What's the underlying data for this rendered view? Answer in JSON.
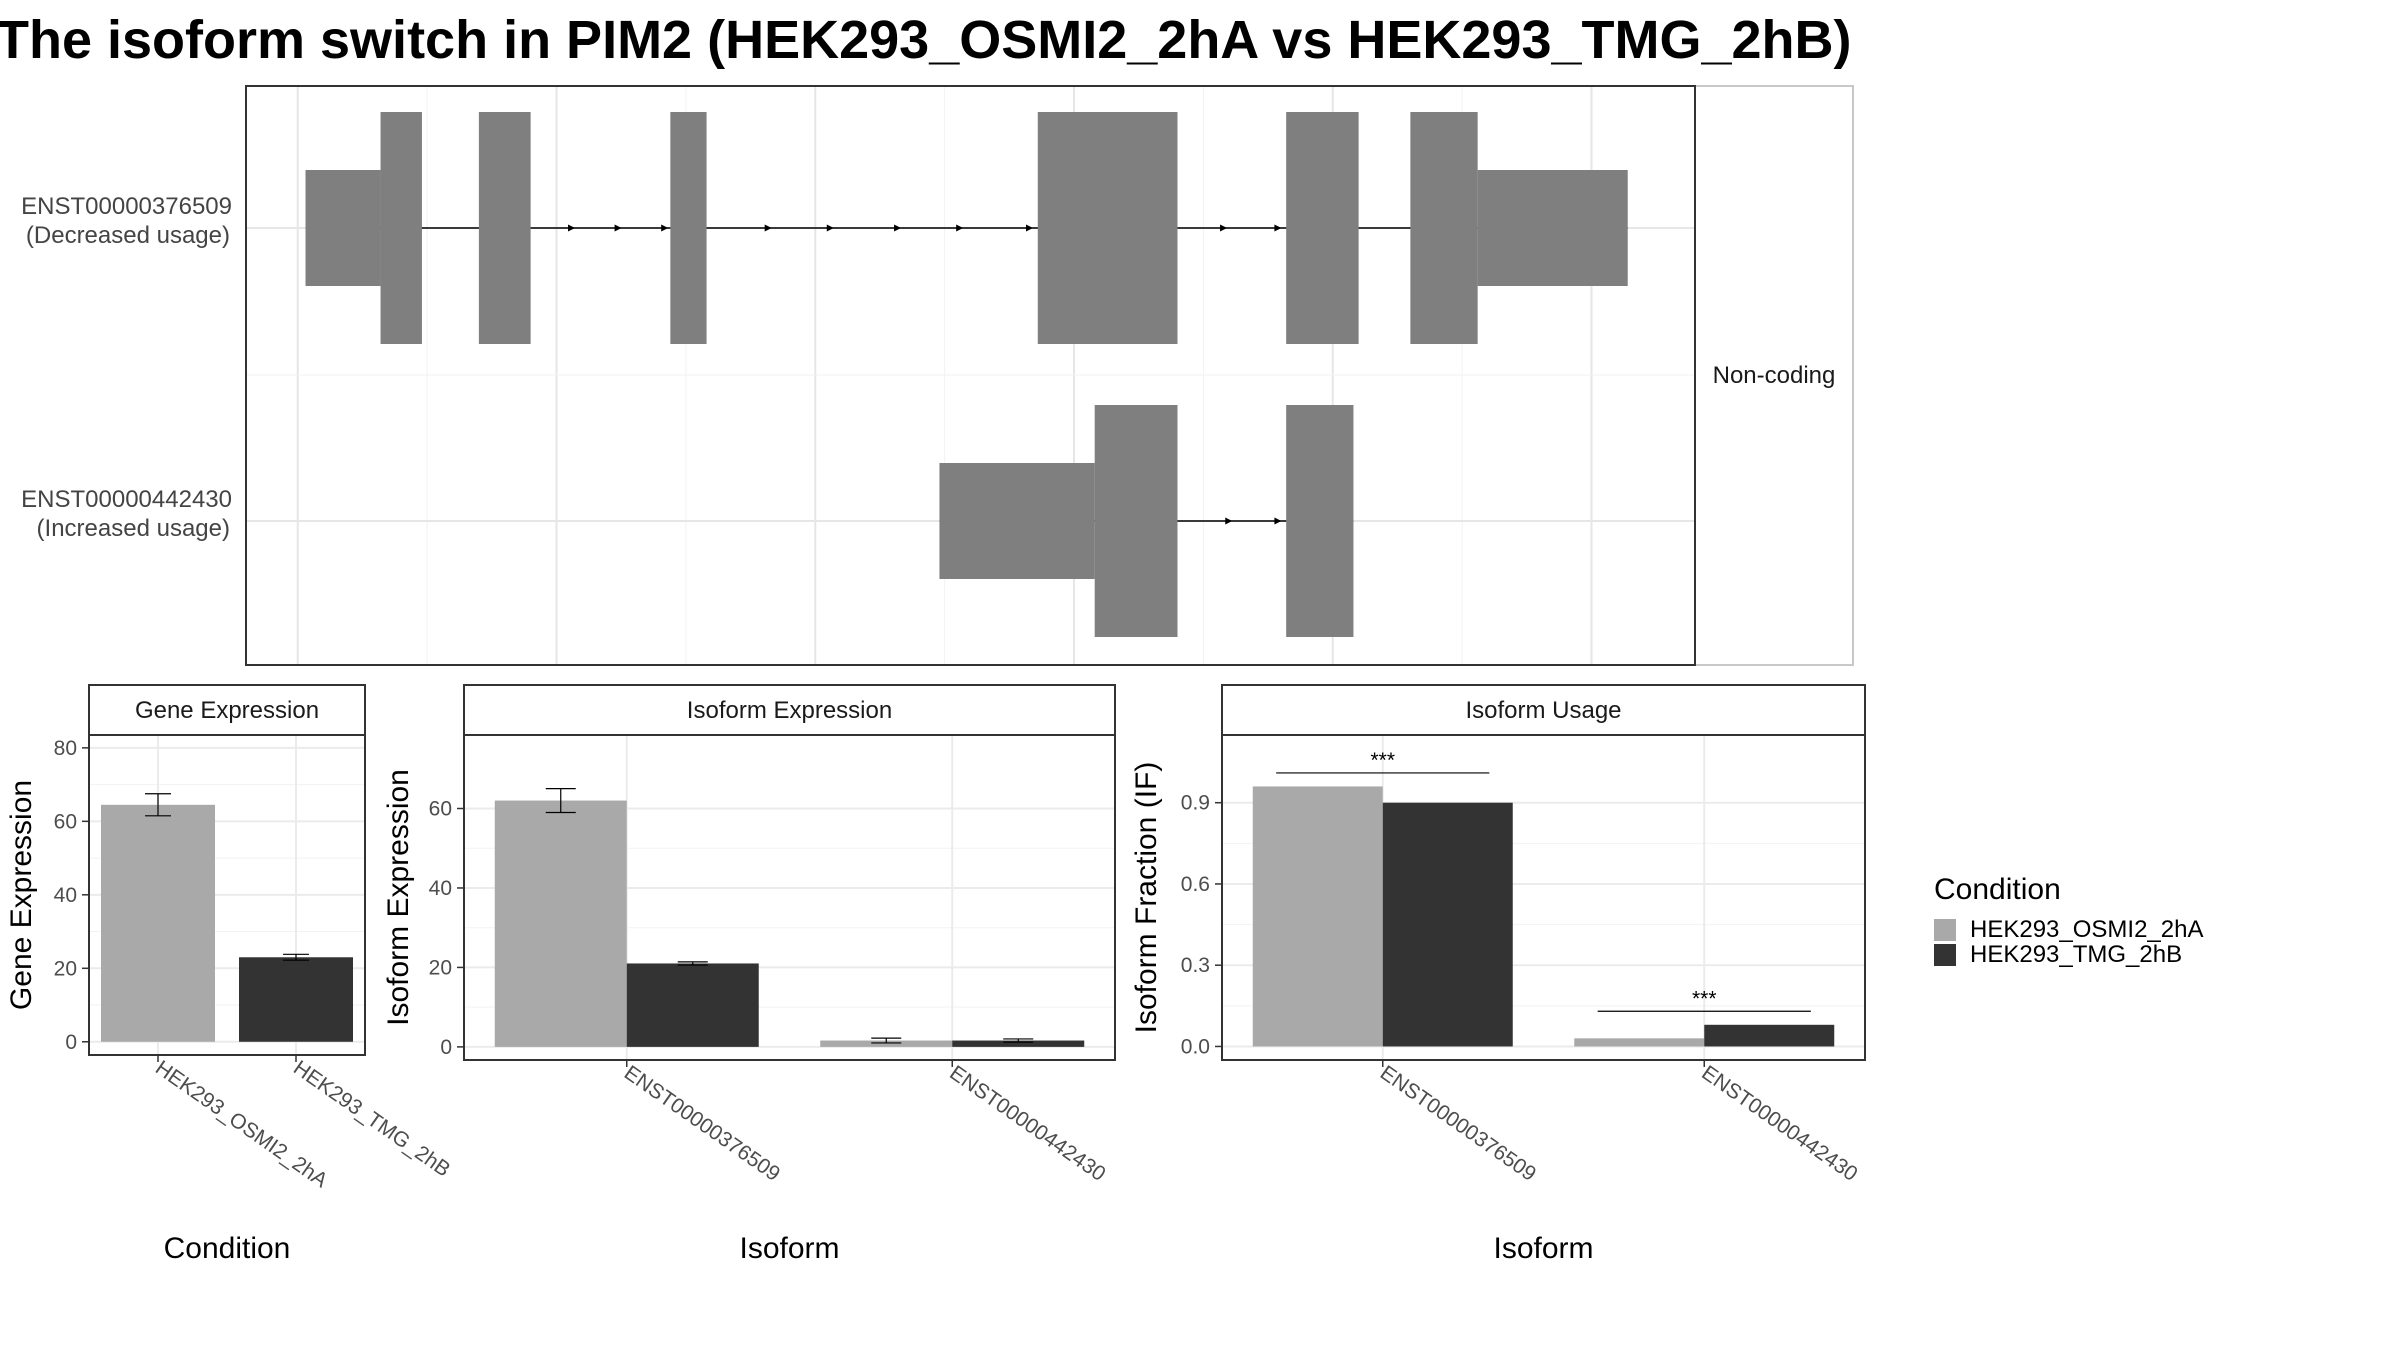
{
  "title": "The isoform switch in PIM2 (HEK293_OSMI2_2hA vs HEK293_TMG_2hB)",
  "colors": {
    "exon": "#7f7f7f",
    "cond_a": "#a9a9a9",
    "cond_b": "#333333",
    "grid": "#ebebeb",
    "panel_border": "#333333",
    "strip_fill": "#ffffff"
  },
  "legend": {
    "title": "Condition",
    "items": [
      {
        "label": "HEK293_OSMI2_2hA",
        "color": "#a9a9a9"
      },
      {
        "label": "HEK293_TMG_2hB",
        "color": "#333333"
      }
    ]
  },
  "chart_data": [
    {
      "id": "isoform_structure",
      "type": "gene-structure",
      "side_label": "Non-coding",
      "isoforms": [
        {
          "name": "ENST00000376509",
          "usage": "(Decreased usage)",
          "exons": [
            {
              "start": 0.3,
              "end": 3.2,
              "kind": "utr"
            },
            {
              "start": 3.2,
              "end": 4.8,
              "kind": "cds"
            },
            {
              "start": 7.0,
              "end": 9.0,
              "kind": "cds"
            },
            {
              "start": 14.4,
              "end": 15.8,
              "kind": "cds"
            },
            {
              "start": 28.6,
              "end": 34.0,
              "kind": "cds"
            },
            {
              "start": 38.2,
              "end": 41.0,
              "kind": "cds"
            },
            {
              "start": 43.0,
              "end": 45.6,
              "kind": "cds"
            },
            {
              "start": 45.6,
              "end": 51.4,
              "kind": "utr"
            }
          ],
          "direction_arrows": [
            10.6,
            12.4,
            14.2,
            18.2,
            20.6,
            23.2,
            25.6,
            28.3,
            35.8,
            37.9
          ]
        },
        {
          "name": "ENST00000442430",
          "usage": "(Increased usage)",
          "exons": [
            {
              "start": 24.8,
              "end": 30.8,
              "kind": "utr"
            },
            {
              "start": 30.8,
              "end": 34.0,
              "kind": "cds"
            },
            {
              "start": 38.2,
              "end": 40.8,
              "kind": "cds"
            }
          ],
          "direction_arrows": [
            36.0,
            37.9
          ]
        }
      ]
    },
    {
      "id": "gene_expression",
      "type": "bar",
      "strip": "Gene Expression",
      "xlabel": "Condition",
      "ylabel": "Gene Expression",
      "ylim": [
        -3.6,
        83.5
      ],
      "yticks": [
        0,
        20,
        40,
        60,
        80
      ],
      "categories": [
        "HEK293_OSMI2_2hA",
        "HEK293_TMG_2hB"
      ],
      "series": [
        {
          "name": "HEK293_OSMI2_2hA",
          "values": [
            64.5,
            null
          ],
          "err": [
            3.0,
            null
          ]
        },
        {
          "name": "HEK293_TMG_2hB",
          "values": [
            null,
            23.0
          ],
          "err": [
            null,
            0.8
          ]
        }
      ]
    },
    {
      "id": "isoform_expression",
      "type": "bar",
      "strip": "Isoform Expression",
      "xlabel": "Isoform",
      "ylabel": "Isoform Expression",
      "ylim": [
        -3.3,
        78.5
      ],
      "yticks": [
        0,
        20,
        40,
        60
      ],
      "categories": [
        "ENST00000376509",
        "ENST00000442430"
      ],
      "series": [
        {
          "name": "HEK293_OSMI2_2hA",
          "values": [
            62.0,
            1.6
          ],
          "err": [
            3.0,
            0.6
          ]
        },
        {
          "name": "HEK293_TMG_2hB",
          "values": [
            21.0,
            1.6
          ],
          "err": [
            0.4,
            0.4
          ]
        }
      ]
    },
    {
      "id": "isoform_usage",
      "type": "bar",
      "strip": "Isoform Usage",
      "xlabel": "Isoform",
      "ylabel": "Isoform Fraction (IF)",
      "ylim": [
        -0.05,
        1.15
      ],
      "yticks": [
        0.0,
        0.3,
        0.6,
        0.9
      ],
      "ytick_labels": [
        "0.0",
        "0.3",
        "0.6",
        "0.9"
      ],
      "categories": [
        "ENST00000376509",
        "ENST00000442430"
      ],
      "series": [
        {
          "name": "HEK293_OSMI2_2hA",
          "values": [
            0.96,
            0.03
          ]
        },
        {
          "name": "HEK293_TMG_2hB",
          "values": [
            0.9,
            0.08
          ]
        }
      ],
      "significance": [
        {
          "category": "ENST00000376509",
          "label": "***",
          "at": 1.01
        },
        {
          "category": "ENST00000442430",
          "label": "***",
          "at": 0.13
        }
      ]
    }
  ]
}
